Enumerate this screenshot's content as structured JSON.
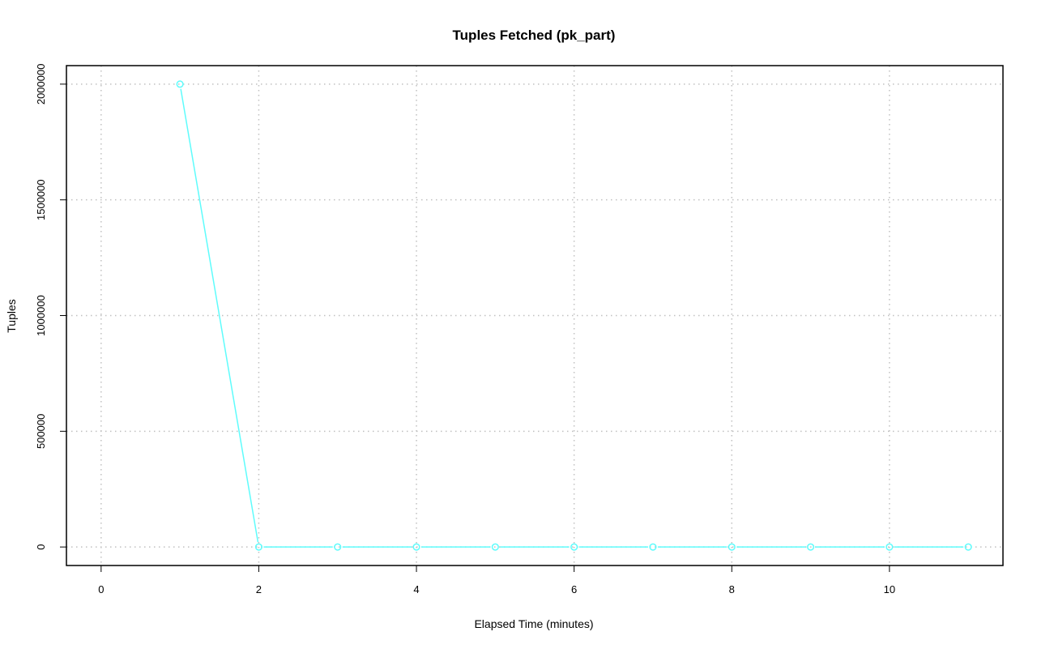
{
  "chart_data": {
    "type": "line",
    "title": "Tuples Fetched (pk_part)",
    "xlabel": "Elapsed Time (minutes)",
    "ylabel": "Tuples",
    "xlim": [
      0,
      11
    ],
    "ylim": [
      0,
      2000000
    ],
    "x_ticks": [
      0,
      2,
      4,
      6,
      8,
      10
    ],
    "y_ticks": [
      0,
      500000,
      1000000,
      1500000,
      2000000
    ],
    "grid": true,
    "series": [
      {
        "color": "#5ffcfc",
        "markers": "open-circle",
        "x": [
          1,
          2,
          3,
          4,
          5,
          6,
          7,
          8,
          9,
          10,
          11
        ],
        "y": [
          2000000,
          0,
          0,
          0,
          0,
          0,
          0,
          0,
          0,
          0,
          0
        ]
      }
    ]
  }
}
